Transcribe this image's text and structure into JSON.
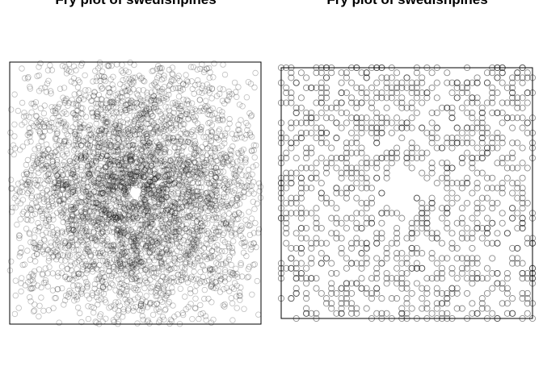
{
  "chart_data": [
    {
      "type": "scatter",
      "title": "Fry plot of swedishpines",
      "xlabel": "",
      "ylabel": "",
      "marker": "open-circle",
      "marker_color": "#000000",
      "point_alpha": 0.25,
      "axes_shown": false,
      "point_count": 4300,
      "xlim": [
        -96,
        96
      ],
      "ylim": [
        -100,
        100
      ]
    },
    {
      "type": "scatter",
      "title": "Fry plot of swedishpines",
      "xlabel": "",
      "ylabel": "",
      "marker": "open-circle",
      "marker_color": "#000000",
      "point_alpha": 0.45,
      "axes_shown": false,
      "lattice_step": 5,
      "empty_zone_radius": 6,
      "xlim": [
        -50,
        50
      ],
      "ylim": [
        -50,
        50
      ]
    }
  ]
}
